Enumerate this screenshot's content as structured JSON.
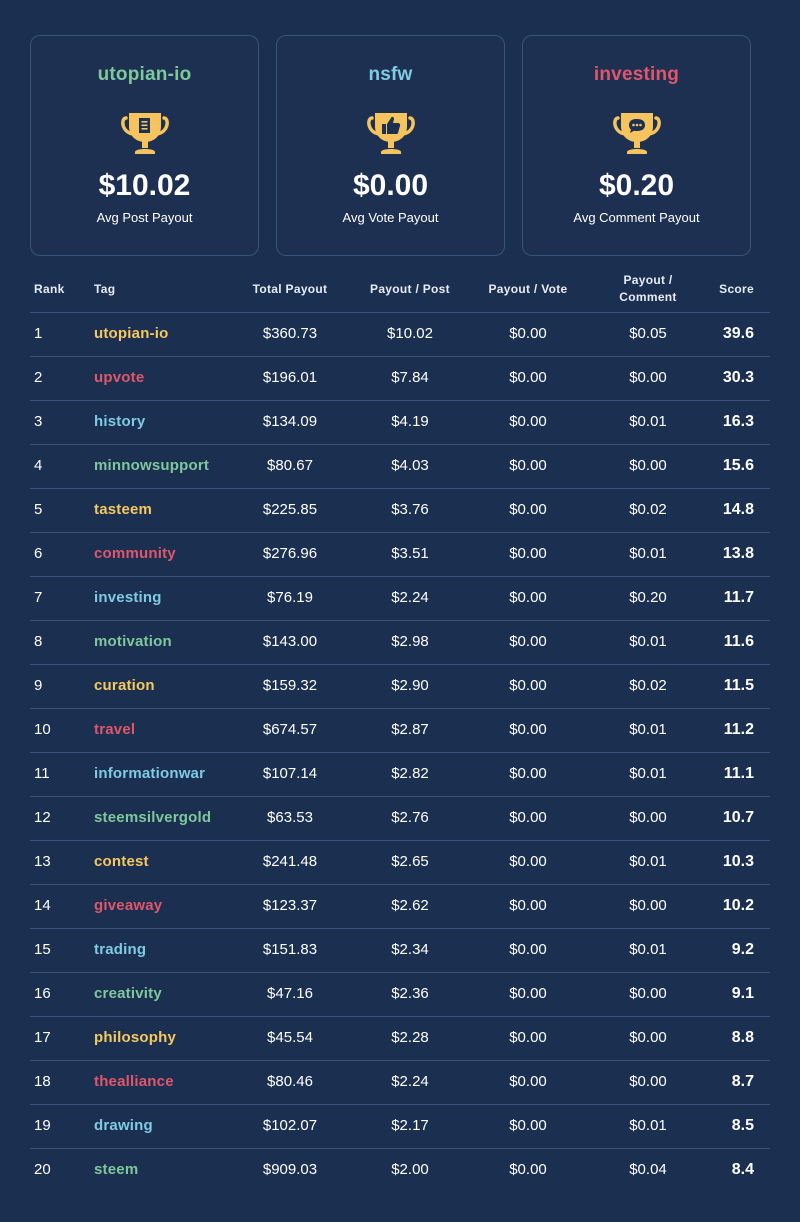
{
  "colors": {
    "background": "#1b2f50",
    "border": "#3b5378",
    "green": "#7ec99b",
    "blue": "#7fcbe3",
    "red": "#e0566a",
    "yellow": "#f7c85e",
    "trophy": "#f5c45e"
  },
  "cards": [
    {
      "tag": "utopian-io",
      "tag_color": "#7ec99b",
      "icon": "trophy-document-icon",
      "value": "$10.02",
      "label": "Avg Post Payout"
    },
    {
      "tag": "nsfw",
      "tag_color": "#7fcbe3",
      "icon": "trophy-thumbs-up-icon",
      "value": "$0.00",
      "label": "Avg Vote Payout"
    },
    {
      "tag": "investing",
      "tag_color": "#e0566a",
      "icon": "trophy-comment-icon",
      "value": "$0.20",
      "label": "Avg Comment Payout"
    }
  ],
  "table": {
    "headers": {
      "rank": "Rank",
      "tag": "Tag",
      "total": "Total Payout",
      "ppost": "Payout / Post",
      "pvote": "Payout / Vote",
      "pcomm_line1": "Payout /",
      "pcomm_line2": "Comment",
      "score": "Score"
    },
    "rows": [
      {
        "rank": "1",
        "tag": "utopian-io",
        "color": "#f7c85e",
        "total": "$360.73",
        "ppost": "$10.02",
        "pvote": "$0.00",
        "pcomm": "$0.05",
        "score": "39.6"
      },
      {
        "rank": "2",
        "tag": "upvote",
        "color": "#e0566a",
        "total": "$196.01",
        "ppost": "$7.84",
        "pvote": "$0.00",
        "pcomm": "$0.00",
        "score": "30.3"
      },
      {
        "rank": "3",
        "tag": "history",
        "color": "#7fcbe3",
        "total": "$134.09",
        "ppost": "$4.19",
        "pvote": "$0.00",
        "pcomm": "$0.01",
        "score": "16.3"
      },
      {
        "rank": "4",
        "tag": "minnowsupport",
        "color": "#7ec99b",
        "total": "$80.67",
        "ppost": "$4.03",
        "pvote": "$0.00",
        "pcomm": "$0.00",
        "score": "15.6"
      },
      {
        "rank": "5",
        "tag": "tasteem",
        "color": "#f7c85e",
        "total": "$225.85",
        "ppost": "$3.76",
        "pvote": "$0.00",
        "pcomm": "$0.02",
        "score": "14.8"
      },
      {
        "rank": "6",
        "tag": "community",
        "color": "#e0566a",
        "total": "$276.96",
        "ppost": "$3.51",
        "pvote": "$0.00",
        "pcomm": "$0.01",
        "score": "13.8"
      },
      {
        "rank": "7",
        "tag": "investing",
        "color": "#7fcbe3",
        "total": "$76.19",
        "ppost": "$2.24",
        "pvote": "$0.00",
        "pcomm": "$0.20",
        "score": "11.7"
      },
      {
        "rank": "8",
        "tag": "motivation",
        "color": "#7ec99b",
        "total": "$143.00",
        "ppost": "$2.98",
        "pvote": "$0.00",
        "pcomm": "$0.01",
        "score": "11.6"
      },
      {
        "rank": "9",
        "tag": "curation",
        "color": "#f7c85e",
        "total": "$159.32",
        "ppost": "$2.90",
        "pvote": "$0.00",
        "pcomm": "$0.02",
        "score": "11.5"
      },
      {
        "rank": "10",
        "tag": "travel",
        "color": "#e0566a",
        "total": "$674.57",
        "ppost": "$2.87",
        "pvote": "$0.00",
        "pcomm": "$0.01",
        "score": "11.2"
      },
      {
        "rank": "11",
        "tag": "informationwar",
        "color": "#7fcbe3",
        "total": "$107.14",
        "ppost": "$2.82",
        "pvote": "$0.00",
        "pcomm": "$0.01",
        "score": "11.1"
      },
      {
        "rank": "12",
        "tag": "steemsilvergold",
        "color": "#7ec99b",
        "total": "$63.53",
        "ppost": "$2.76",
        "pvote": "$0.00",
        "pcomm": "$0.00",
        "score": "10.7"
      },
      {
        "rank": "13",
        "tag": "contest",
        "color": "#f7c85e",
        "total": "$241.48",
        "ppost": "$2.65",
        "pvote": "$0.00",
        "pcomm": "$0.01",
        "score": "10.3"
      },
      {
        "rank": "14",
        "tag": "giveaway",
        "color": "#e0566a",
        "total": "$123.37",
        "ppost": "$2.62",
        "pvote": "$0.00",
        "pcomm": "$0.00",
        "score": "10.2"
      },
      {
        "rank": "15",
        "tag": "trading",
        "color": "#7fcbe3",
        "total": "$151.83",
        "ppost": "$2.34",
        "pvote": "$0.00",
        "pcomm": "$0.01",
        "score": "9.2"
      },
      {
        "rank": "16",
        "tag": "creativity",
        "color": "#7ec99b",
        "total": "$47.16",
        "ppost": "$2.36",
        "pvote": "$0.00",
        "pcomm": "$0.00",
        "score": "9.1"
      },
      {
        "rank": "17",
        "tag": "philosophy",
        "color": "#f7c85e",
        "total": "$45.54",
        "ppost": "$2.28",
        "pvote": "$0.00",
        "pcomm": "$0.00",
        "score": "8.8"
      },
      {
        "rank": "18",
        "tag": "thealliance",
        "color": "#e0566a",
        "total": "$80.46",
        "ppost": "$2.24",
        "pvote": "$0.00",
        "pcomm": "$0.00",
        "score": "8.7"
      },
      {
        "rank": "19",
        "tag": "drawing",
        "color": "#7fcbe3",
        "total": "$102.07",
        "ppost": "$2.17",
        "pvote": "$0.00",
        "pcomm": "$0.01",
        "score": "8.5"
      },
      {
        "rank": "20",
        "tag": "steem",
        "color": "#7ec99b",
        "total": "$909.03",
        "ppost": "$2.00",
        "pvote": "$0.00",
        "pcomm": "$0.04",
        "score": "8.4"
      }
    ]
  }
}
